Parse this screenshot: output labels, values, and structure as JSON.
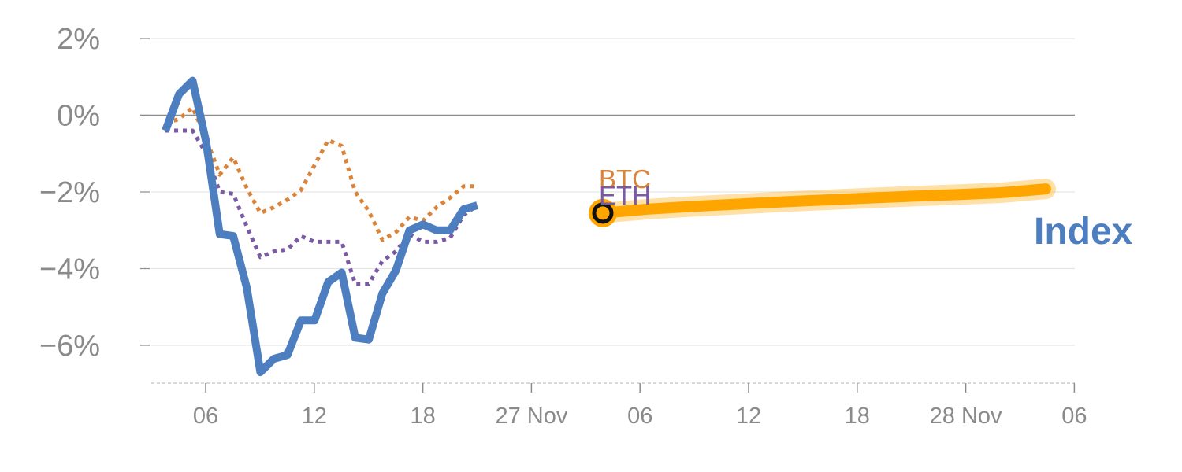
{
  "chart_data": {
    "type": "line",
    "title": "",
    "xlabel": "",
    "ylabel": "",
    "grid": true,
    "ylim": [
      -7,
      2
    ],
    "y_ticks": [
      {
        "value": 2,
        "label": "2%"
      },
      {
        "value": 0,
        "label": "0%"
      },
      {
        "value": -2,
        "label": "−2%"
      },
      {
        "value": -4,
        "label": "−4%"
      },
      {
        "value": -6,
        "label": "−6%"
      }
    ],
    "x_ticks": [
      "06",
      "12",
      "18",
      "27 Nov",
      "06",
      "12",
      "18",
      "28 Nov",
      "06"
    ],
    "series": [
      {
        "name": "Index",
        "color": "#4d7ebf",
        "style": "solid",
        "values": [
          -0.4,
          0.55,
          0.9,
          -0.7,
          -3.1,
          -3.15,
          -4.5,
          -6.7,
          -6.35,
          -6.25,
          -5.35,
          -5.35,
          -4.35,
          -4.1,
          -5.8,
          -5.85,
          -4.65,
          -4.05,
          -3.0,
          -2.85,
          -3.0,
          -3.0,
          -2.45,
          -2.35
        ]
      },
      {
        "name": "BTC",
        "color": "#d9843a",
        "style": "dotted",
        "values": [
          -0.2,
          -0.1,
          0.2,
          -0.6,
          -1.55,
          -1.1,
          -1.9,
          -2.55,
          -2.4,
          -2.2,
          -1.95,
          -1.3,
          -0.65,
          -0.8,
          -2.0,
          -2.5,
          -3.25,
          -3.05,
          -2.65,
          -2.75,
          -2.4,
          -2.15,
          -1.85,
          -1.85
        ]
      },
      {
        "name": "ETH",
        "color": "#7a5aa6",
        "style": "dotted",
        "values": [
          -0.4,
          -0.4,
          -0.4,
          -1.0,
          -2.0,
          -2.05,
          -2.9,
          -3.7,
          -3.55,
          -3.5,
          -3.15,
          -3.3,
          -3.3,
          -3.3,
          -4.4,
          -4.4,
          -3.8,
          -3.55,
          -3.1,
          -3.3,
          -3.3,
          -3.2,
          -2.6,
          -2.35
        ]
      }
    ],
    "current_point": {
      "value": -2.55
    },
    "projection": {
      "color": "#ffa500",
      "values": [
        -2.55,
        -2.45,
        -2.38,
        -2.32,
        -2.26,
        -2.21,
        -2.16,
        -2.11,
        -2.07,
        -2.02,
        -1.92
      ]
    },
    "end_label": "Index"
  }
}
